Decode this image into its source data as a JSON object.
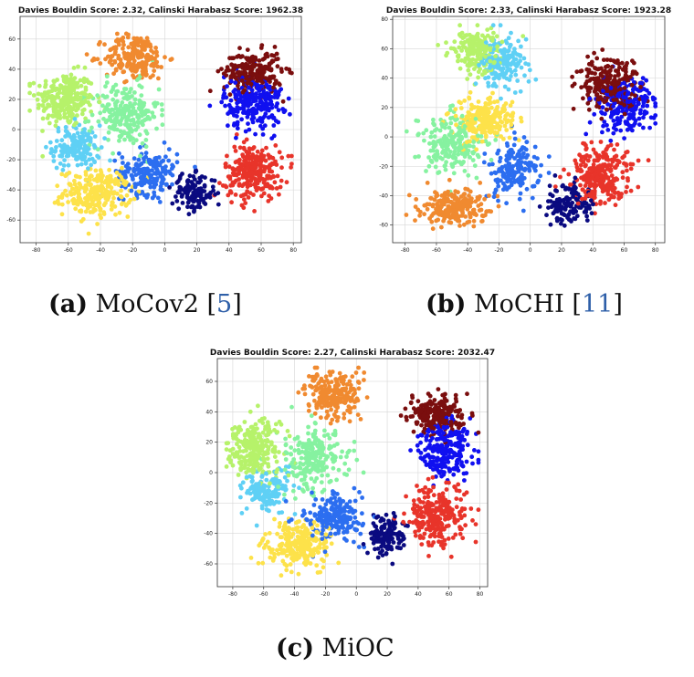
{
  "captions": [
    {
      "tag": "(a)",
      "text": "MoCov2",
      "cite_open": "[",
      "cite": "5",
      "cite_close": "]"
    },
    {
      "tag": "(b)",
      "text": "MoCHI",
      "cite_open": "[",
      "cite": "11",
      "cite_close": "]"
    },
    {
      "tag": "(c)",
      "text": "MiOC",
      "cite_open": "",
      "cite": "",
      "cite_close": ""
    }
  ],
  "colors": {
    "light_green": "#b6f26a",
    "mint": "#86f2a0",
    "sky": "#5fd0f5",
    "yellow": "#fde24a",
    "orange": "#f08a30",
    "red": "#e8342a",
    "maroon": "#7a0e0e",
    "blue": "#1010f0",
    "navy": "#0a0a80",
    "mid_blue": "#2c6ef0"
  },
  "chart_data": [
    {
      "type": "scatter",
      "title": "Davies Bouldin Score: 2.32, Calinski Harabasz Score: 1962.38",
      "xlabel": "",
      "ylabel": "",
      "xlim": [
        -90,
        85
      ],
      "ylim": [
        -75,
        75
      ],
      "xticks": [
        -80,
        -60,
        -40,
        -20,
        0,
        20,
        40,
        60,
        80
      ],
      "yticks": [
        -60,
        -40,
        -20,
        0,
        20,
        40,
        60
      ],
      "grid": true,
      "clusters": [
        {
          "color": "light_green",
          "center": [
            -62,
            20
          ],
          "spread": [
            12,
            12
          ],
          "count": 260
        },
        {
          "color": "sky",
          "center": [
            -55,
            -12
          ],
          "spread": [
            10,
            10
          ],
          "count": 150
        },
        {
          "color": "yellow",
          "center": [
            -42,
            -42
          ],
          "spread": [
            14,
            10
          ],
          "count": 260
        },
        {
          "color": "mint",
          "center": [
            -25,
            10
          ],
          "spread": [
            14,
            14
          ],
          "count": 230
        },
        {
          "color": "orange",
          "center": [
            -18,
            48
          ],
          "spread": [
            13,
            10
          ],
          "count": 220
        },
        {
          "color": "mid_blue",
          "center": [
            -10,
            -28
          ],
          "spread": [
            12,
            10
          ],
          "count": 190
        },
        {
          "color": "navy",
          "center": [
            18,
            -42
          ],
          "spread": [
            9,
            8
          ],
          "count": 130
        },
        {
          "color": "maroon",
          "center": [
            55,
            38
          ],
          "spread": [
            12,
            9
          ],
          "count": 230
        },
        {
          "color": "blue",
          "center": [
            55,
            18
          ],
          "spread": [
            12,
            12
          ],
          "count": 230
        },
        {
          "color": "red",
          "center": [
            55,
            -28
          ],
          "spread": [
            12,
            12
          ],
          "count": 260
        }
      ]
    },
    {
      "type": "scatter",
      "title": "Davies Bouldin Score: 2.33, Calinski Harabasz Score: 1923.28",
      "xlabel": "",
      "ylabel": "",
      "xlim": [
        -88,
        86
      ],
      "ylim": [
        -72,
        82
      ],
      "xticks": [
        -80,
        -60,
        -40,
        -20,
        0,
        20,
        40,
        60,
        80
      ],
      "yticks": [
        -60,
        -40,
        -20,
        0,
        20,
        40,
        60,
        80
      ],
      "grid": true,
      "clusters": [
        {
          "color": "light_green",
          "center": [
            -35,
            58
          ],
          "spread": [
            10,
            10
          ],
          "count": 190
        },
        {
          "color": "sky",
          "center": [
            -18,
            50
          ],
          "spread": [
            10,
            12
          ],
          "count": 170
        },
        {
          "color": "yellow",
          "center": [
            -30,
            12
          ],
          "spread": [
            14,
            10
          ],
          "count": 230
        },
        {
          "color": "mint",
          "center": [
            -50,
            -5
          ],
          "spread": [
            14,
            14
          ],
          "count": 220
        },
        {
          "color": "orange",
          "center": [
            -48,
            -48
          ],
          "spread": [
            14,
            8
          ],
          "count": 230
        },
        {
          "color": "mid_blue",
          "center": [
            -10,
            -22
          ],
          "spread": [
            10,
            12
          ],
          "count": 170
        },
        {
          "color": "navy",
          "center": [
            25,
            -45
          ],
          "spread": [
            10,
            9
          ],
          "count": 140
        },
        {
          "color": "maroon",
          "center": [
            50,
            35
          ],
          "spread": [
            14,
            12
          ],
          "count": 240
        },
        {
          "color": "blue",
          "center": [
            62,
            20
          ],
          "spread": [
            12,
            12
          ],
          "count": 220
        },
        {
          "color": "red",
          "center": [
            45,
            -25
          ],
          "spread": [
            13,
            13
          ],
          "count": 260
        }
      ]
    },
    {
      "type": "scatter",
      "title": "Davies Bouldin Score: 2.27, Calinski Harabasz Score: 2032.47",
      "xlabel": "",
      "ylabel": "",
      "xlim": [
        -90,
        85
      ],
      "ylim": [
        -75,
        75
      ],
      "xticks": [
        -80,
        -60,
        -40,
        -20,
        0,
        20,
        40,
        60,
        80
      ],
      "yticks": [
        -60,
        -40,
        -20,
        0,
        20,
        40,
        60
      ],
      "grid": true,
      "clusters": [
        {
          "color": "light_green",
          "center": [
            -65,
            15
          ],
          "spread": [
            11,
            13
          ],
          "count": 250
        },
        {
          "color": "sky",
          "center": [
            -58,
            -12
          ],
          "spread": [
            10,
            10
          ],
          "count": 150
        },
        {
          "color": "yellow",
          "center": [
            -38,
            -48
          ],
          "spread": [
            14,
            10
          ],
          "count": 260
        },
        {
          "color": "mint",
          "center": [
            -28,
            10
          ],
          "spread": [
            14,
            14
          ],
          "count": 230
        },
        {
          "color": "orange",
          "center": [
            -15,
            50
          ],
          "spread": [
            12,
            11
          ],
          "count": 220
        },
        {
          "color": "mid_blue",
          "center": [
            -15,
            -30
          ],
          "spread": [
            12,
            10
          ],
          "count": 190
        },
        {
          "color": "navy",
          "center": [
            20,
            -42
          ],
          "spread": [
            9,
            9
          ],
          "count": 130
        },
        {
          "color": "maroon",
          "center": [
            52,
            38
          ],
          "spread": [
            12,
            9
          ],
          "count": 230
        },
        {
          "color": "blue",
          "center": [
            58,
            15
          ],
          "spread": [
            12,
            12
          ],
          "count": 230
        },
        {
          "color": "red",
          "center": [
            52,
            -28
          ],
          "spread": [
            12,
            12
          ],
          "count": 260
        }
      ]
    }
  ]
}
